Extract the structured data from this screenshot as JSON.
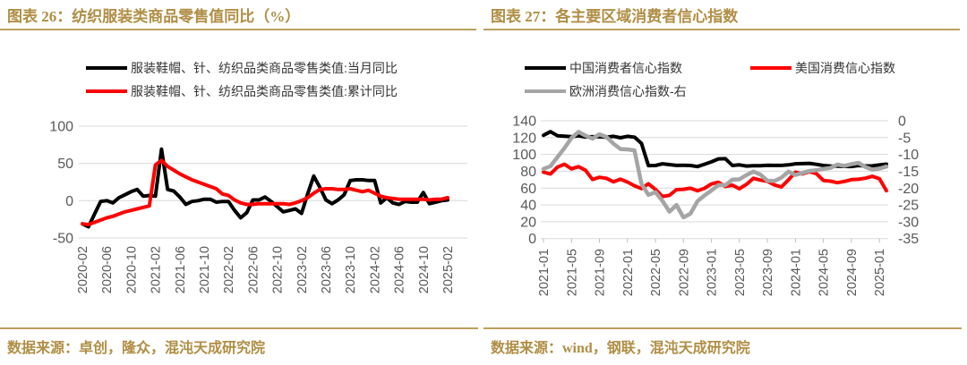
{
  "panels": {
    "left": {
      "title": "图表 26：纺织服装类商品零售值同比（%）",
      "source": "数据来源：卓创，隆众，混沌天成研究院"
    },
    "right": {
      "title": "图表 27：各主要区域消费者信心指数",
      "source": "数据来源：wind，钢联，混沌天成研究院"
    }
  },
  "colors": {
    "accent_gold": "#B08E44",
    "rule_gold": "#BCA05C",
    "grid": "#D9D9D9",
    "axis_text": "#595959"
  },
  "chart_data": [
    {
      "type": "line",
      "title": "图表 26：纺织服装类商品零售值同比（%）",
      "xlabel": "",
      "ylabel": "",
      "ylim": [
        -50,
        100
      ],
      "yticks": [
        100,
        50,
        0,
        -50
      ],
      "grid": true,
      "legend_position": "top",
      "categories": [
        "2020-02",
        "2020-03",
        "2020-04",
        "2020-05",
        "2020-06",
        "2020-07",
        "2020-08",
        "2020-09",
        "2020-10",
        "2020-11",
        "2020-12",
        "2021-01",
        "2021-02",
        "2021-03",
        "2021-04",
        "2021-05",
        "2021-06",
        "2021-07",
        "2021-08",
        "2021-09",
        "2021-10",
        "2021-11",
        "2021-12",
        "2022-01",
        "2022-02",
        "2022-03",
        "2022-04",
        "2022-05",
        "2022-06",
        "2022-07",
        "2022-08",
        "2022-09",
        "2022-10",
        "2022-11",
        "2022-12",
        "2023-01",
        "2023-02",
        "2023-03",
        "2023-04",
        "2023-05",
        "2023-06",
        "2023-07",
        "2023-08",
        "2023-09",
        "2023-10",
        "2023-11",
        "2023-12",
        "2024-01",
        "2024-02",
        "2024-03",
        "2024-04",
        "2024-05",
        "2024-06",
        "2024-07",
        "2024-08",
        "2024-09",
        "2024-10",
        "2024-11",
        "2024-12",
        "2025-01",
        "2025-02"
      ],
      "x_tick_labels": [
        "2020-02",
        "2020-06",
        "2020-10",
        "2021-02",
        "2021-06",
        "2021-10",
        "2022-02",
        "2022-06",
        "2022-10",
        "2023-02",
        "2023-06",
        "2023-10",
        "2024-02",
        "2024-06",
        "2024-10",
        "2025-02"
      ],
      "series": [
        {
          "name": "服装鞋帽、针、纺织品类商品零售类值:当月同比",
          "color": "#000000",
          "values": [
            -31,
            -35,
            -18,
            -1,
            0,
            -3,
            4,
            8,
            12,
            15,
            6,
            7,
            6,
            69,
            15,
            13,
            5,
            -5,
            -1,
            0,
            2,
            2,
            -2,
            -1,
            -1,
            -13,
            -23,
            -16,
            1,
            1,
            5,
            -1,
            -8,
            -15,
            -13,
            -11,
            -17,
            9,
            33,
            18,
            1,
            -4,
            1,
            8,
            27,
            28,
            28,
            27,
            27,
            -3,
            4,
            -3,
            -5,
            -1,
            -2,
            -2,
            11,
            -4,
            -2,
            0,
            1
          ]
        },
        {
          "name": "服装鞋帽、针、纺织品类商品零售类值:累计同比",
          "color": "#FE0000",
          "values": [
            -31,
            -32,
            -29,
            -26,
            -23,
            -21,
            -18,
            -15,
            -13,
            -11,
            -9,
            -7,
            48,
            54,
            46,
            41,
            36,
            32,
            28,
            25,
            22,
            19,
            16,
            9,
            7,
            1,
            -3,
            -5,
            -5,
            -4,
            -4,
            -4,
            -4,
            -4,
            -5,
            -3,
            0,
            4,
            10,
            15,
            16,
            16,
            15,
            15,
            16,
            14,
            12,
            14,
            10,
            6,
            4,
            3,
            2,
            2,
            2,
            2,
            2,
            1,
            2,
            2,
            4
          ]
        }
      ]
    },
    {
      "type": "line",
      "title": "图表 27：各主要区域消费者信心指数",
      "xlabel": "",
      "ylabel": "",
      "ylim_left": [
        0,
        140
      ],
      "yticks_left": [
        0,
        20,
        40,
        60,
        80,
        100,
        120,
        140
      ],
      "ylim_right": [
        -35,
        0
      ],
      "yticks_right": [
        0,
        -5,
        -10,
        -15,
        -20,
        -25,
        -30,
        -35
      ],
      "grid": true,
      "legend_position": "top",
      "categories": [
        "2021-01",
        "2021-02",
        "2021-03",
        "2021-04",
        "2021-05",
        "2021-06",
        "2021-07",
        "2021-08",
        "2021-09",
        "2021-10",
        "2021-11",
        "2021-12",
        "2022-01",
        "2022-02",
        "2022-03",
        "2022-04",
        "2022-05",
        "2022-06",
        "2022-07",
        "2022-08",
        "2022-09",
        "2022-10",
        "2022-11",
        "2022-12",
        "2023-01",
        "2023-02",
        "2023-03",
        "2023-04",
        "2023-05",
        "2023-06",
        "2023-07",
        "2023-08",
        "2023-09",
        "2023-10",
        "2023-11",
        "2023-12",
        "2024-01",
        "2024-02",
        "2024-03",
        "2024-04",
        "2024-05",
        "2024-06",
        "2024-07",
        "2024-08",
        "2024-09",
        "2024-10",
        "2024-11",
        "2024-12",
        "2025-01",
        "2025-02"
      ],
      "x_tick_labels": [
        "2021-01",
        "2021-05",
        "2021-09",
        "2022-01",
        "2022-05",
        "2022-09",
        "2023-01",
        "2023-05",
        "2023-09",
        "2024-01",
        "2024-05",
        "2024-09",
        "2025-01"
      ],
      "series": [
        {
          "name": "中国消费者信心指数",
          "color": "#000000",
          "axis": "left",
          "values": [
            122.8,
            127,
            122.2,
            121.6,
            121.1,
            122.1,
            120.8,
            121,
            121.2,
            120.4,
            121.5,
            119.8,
            121.5,
            120.5,
            113.2,
            86.7,
            86.8,
            88.9,
            87.9,
            87,
            87.2,
            86.8,
            85.6,
            88.3,
            91.2,
            94.7,
            94.9,
            86.9,
            87.6,
            86.2,
            86.5,
            86.5,
            87.1,
            87,
            87,
            87.6,
            88.9,
            89.1,
            89.4,
            88.2,
            86.8,
            86.2,
            86,
            85.8,
            85.7,
            86.9,
            86.3,
            86.4,
            87.5,
            88.4
          ]
        },
        {
          "name": "美国消费信心指数",
          "color": "#FE0000",
          "axis": "left",
          "values": [
            79,
            76.8,
            84.9,
            88.3,
            82.9,
            85.5,
            81.2,
            70.3,
            72.8,
            71.7,
            67.4,
            70.6,
            67.2,
            62.8,
            59.4,
            65.2,
            58.4,
            50,
            51.5,
            58.2,
            58.6,
            59.9,
            56.8,
            59.7,
            64.9,
            67,
            62,
            63.5,
            59.2,
            64.4,
            71.6,
            69.5,
            68.1,
            63.8,
            61.3,
            69.7,
            79,
            76.9,
            79.4,
            77.2,
            69.1,
            68.2,
            66.4,
            67.9,
            70.1,
            70.5,
            71.8,
            74,
            71.1,
            57
          ]
        },
        {
          "name": "欧洲消费信心指数-右",
          "color": "#A5A5A5",
          "axis": "right",
          "values": [
            -14.3,
            -13.5,
            -10.8,
            -8.1,
            -5.1,
            -3.3,
            -4.4,
            -5.3,
            -4,
            -4.8,
            -6.8,
            -8.4,
            -8.5,
            -8.8,
            -18.7,
            -22,
            -21.2,
            -23.8,
            -27,
            -25,
            -28.7,
            -27.6,
            -23.9,
            -22.2,
            -20.7,
            -19.1,
            -19.1,
            -17.5,
            -17.4,
            -16.1,
            -15.1,
            -16,
            -17.8,
            -17.9,
            -16.9,
            -15.1,
            -16.1,
            -15.5,
            -14.9,
            -14.7,
            -14.3,
            -14,
            -13,
            -13.4,
            -12.9,
            -12.5,
            -13.7,
            -14.5,
            -14.2,
            -13.6
          ]
        }
      ]
    }
  ]
}
